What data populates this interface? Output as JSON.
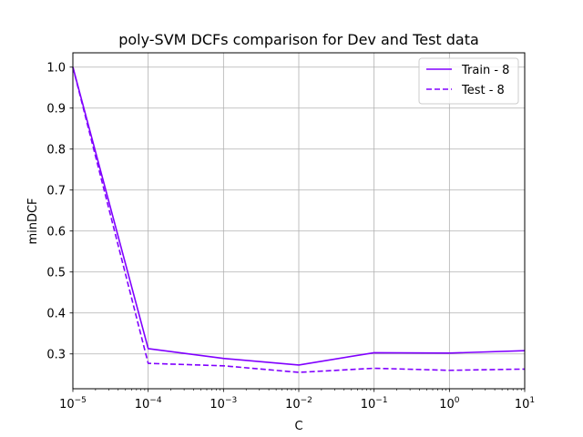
{
  "chart_data": {
    "type": "line",
    "title": "poly-SVM DCFs comparison for Dev and Test data",
    "xlabel": "C",
    "ylabel": "minDCF",
    "xscale": "log",
    "xlim": [
      1e-05,
      10
    ],
    "ylim": [
      0.215,
      1.035
    ],
    "grid": true,
    "legend_position": "top-right",
    "x": [
      1e-05,
      0.0001,
      0.001,
      0.01,
      0.1,
      1,
      10
    ],
    "x_tick_base": "10",
    "x_tick_exponents": [
      "−5",
      "−4",
      "−3",
      "−2",
      "−1",
      "0",
      "1"
    ],
    "y_ticks": [
      "0.3",
      "0.4",
      "0.5",
      "0.6",
      "0.7",
      "0.8",
      "0.9",
      "1.0"
    ],
    "series": [
      {
        "name": "Train - 8",
        "color": "#8000ff",
        "linestyle": "solid",
        "values": [
          1.0,
          0.313,
          0.289,
          0.273,
          0.303,
          0.302,
          0.308
        ]
      },
      {
        "name": "Test - 8",
        "color": "#8000ff",
        "linestyle": "dashed",
        "values": [
          1.0,
          0.277,
          0.271,
          0.255,
          0.265,
          0.26,
          0.263
        ]
      }
    ]
  }
}
